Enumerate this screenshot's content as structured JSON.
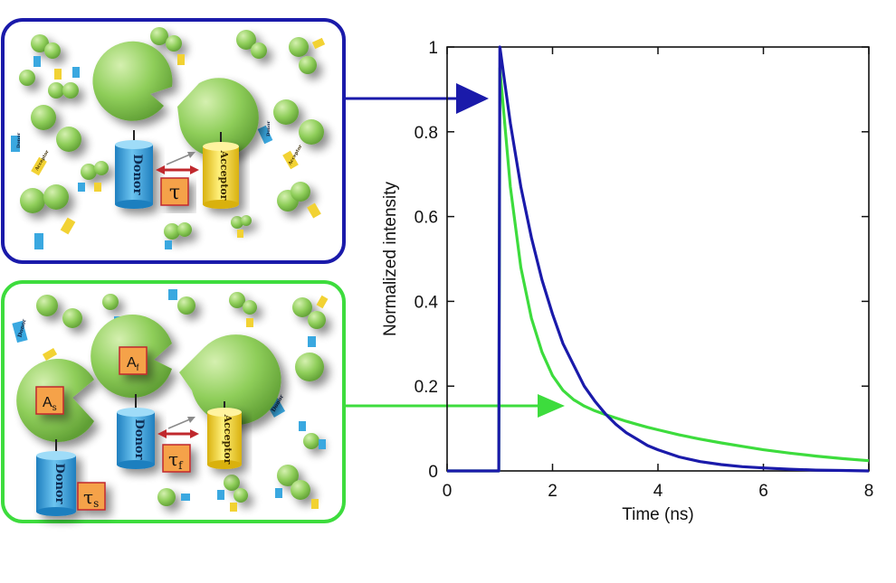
{
  "panels": {
    "top": {
      "border_color": "#1a1aaa",
      "donor_label": "Donor",
      "acceptor_label": "Acceptor",
      "lifetime_symbol": "τ",
      "small_labels": [
        "Donor",
        "Acceptor"
      ]
    },
    "bottom": {
      "border_color": "#3ddc3d",
      "donor_label": "Donor",
      "acceptor_label": "Acceptor",
      "lifetime_fret_symbol": "τ",
      "lifetime_fret_sub": "f",
      "lifetime_slow_symbol": "τ",
      "lifetime_slow_sub": "s",
      "amp_fast": "A",
      "amp_fast_sub": "f",
      "amp_slow": "A",
      "amp_slow_sub": "s",
      "small_labels": [
        "Donor",
        "Acceptor"
      ]
    }
  },
  "colors": {
    "protein": "#8fce5a",
    "donor": "#3aa8e0",
    "acceptor": "#f2d233",
    "tau_box": "#f5a24a",
    "blue_line": "#1a1aaa",
    "green_line": "#3ddc3d",
    "red_arrow": "#c0282d"
  },
  "chart_data": {
    "type": "line",
    "xlabel": "Time (ns)",
    "ylabel": "Normalized intensity",
    "xlim": [
      0,
      8
    ],
    "ylim": [
      0,
      1
    ],
    "xticks": [
      0,
      2,
      4,
      6,
      8
    ],
    "yticks": [
      0,
      0.2,
      0.4,
      0.6,
      0.8,
      1
    ],
    "ytick_labels": [
      "0",
      "0.2",
      "0.4",
      "0.6",
      "0.8",
      "1"
    ],
    "series": [
      {
        "color": "#1a1aaa",
        "x": [
          0,
          0.98,
          1.0,
          1.2,
          1.4,
          1.6,
          1.8,
          2.0,
          2.2,
          2.4,
          2.6,
          2.8,
          3.0,
          3.2,
          3.4,
          3.6,
          3.8,
          4.0,
          4.4,
          4.8,
          5.2,
          5.6,
          6.0,
          6.5,
          7.0,
          7.5,
          8.0
        ],
        "y": [
          0,
          0,
          1.0,
          0.82,
          0.67,
          0.55,
          0.45,
          0.37,
          0.3,
          0.25,
          0.2,
          0.165,
          0.135,
          0.11,
          0.09,
          0.075,
          0.06,
          0.05,
          0.033,
          0.022,
          0.015,
          0.01,
          0.007,
          0.004,
          0.002,
          0.001,
          0.0
        ]
      },
      {
        "color": "#3ddc3d",
        "x": [
          0,
          0.98,
          1.0,
          1.2,
          1.4,
          1.6,
          1.8,
          2.0,
          2.2,
          2.4,
          2.6,
          2.8,
          3.0,
          3.2,
          3.4,
          3.6,
          3.8,
          4.0,
          4.4,
          4.8,
          5.2,
          5.6,
          6.0,
          6.5,
          7.0,
          7.5,
          8.0
        ],
        "y": [
          0,
          0,
          0.95,
          0.67,
          0.48,
          0.36,
          0.28,
          0.225,
          0.19,
          0.168,
          0.153,
          0.142,
          0.133,
          0.125,
          0.117,
          0.11,
          0.103,
          0.097,
          0.085,
          0.075,
          0.066,
          0.058,
          0.05,
          0.042,
          0.035,
          0.029,
          0.024
        ]
      }
    ]
  }
}
